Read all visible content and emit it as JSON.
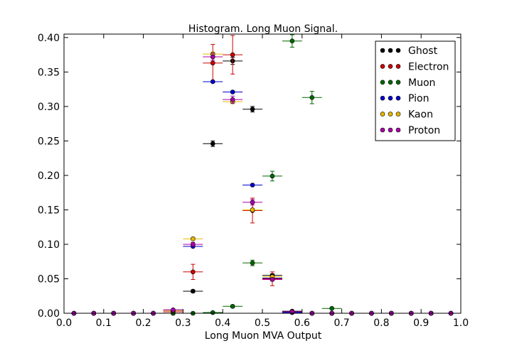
{
  "chart_data": {
    "type": "scatter",
    "title": "Histogram. Long Muon Signal.",
    "xlabel": "Long Muon MVA Output",
    "ylabel": "",
    "xlim": [
      0.0,
      1.0
    ],
    "ylim": [
      0.0,
      0.405
    ],
    "xticks": [
      "0.0",
      "0.1",
      "0.2",
      "0.3",
      "0.4",
      "0.5",
      "0.6",
      "0.7",
      "0.8",
      "0.9",
      "1.0"
    ],
    "yticks": [
      "0.00",
      "0.05",
      "0.10",
      "0.15",
      "0.20",
      "0.25",
      "0.30",
      "0.35",
      "0.40"
    ],
    "grid": false,
    "legend_position": "top-right",
    "bin_half_width": 0.025,
    "series": [
      {
        "name": "Ghost",
        "color": "#000000",
        "points": [
          {
            "x": 0.025,
            "y": 0.0,
            "err": 0.0
          },
          {
            "x": 0.075,
            "y": 0.0,
            "err": 0.0
          },
          {
            "x": 0.125,
            "y": 0.0,
            "err": 0.0
          },
          {
            "x": 0.175,
            "y": 0.0,
            "err": 0.0
          },
          {
            "x": 0.225,
            "y": 0.0,
            "err": 0.0
          },
          {
            "x": 0.275,
            "y": 0.0,
            "err": 0.0
          },
          {
            "x": 0.325,
            "y": 0.032,
            "err": 0.002
          },
          {
            "x": 0.375,
            "y": 0.246,
            "err": 0.004
          },
          {
            "x": 0.425,
            "y": 0.366,
            "err": 0.005
          },
          {
            "x": 0.475,
            "y": 0.296,
            "err": 0.004
          },
          {
            "x": 0.525,
            "y": 0.055,
            "err": 0.002
          },
          {
            "x": 0.575,
            "y": 0.003,
            "err": 0.001
          },
          {
            "x": 0.625,
            "y": 0.0,
            "err": 0.0
          },
          {
            "x": 0.675,
            "y": 0.0,
            "err": 0.0
          },
          {
            "x": 0.725,
            "y": 0.0,
            "err": 0.0
          },
          {
            "x": 0.775,
            "y": 0.0,
            "err": 0.0
          },
          {
            "x": 0.825,
            "y": 0.0,
            "err": 0.0
          },
          {
            "x": 0.875,
            "y": 0.0,
            "err": 0.0
          },
          {
            "x": 0.925,
            "y": 0.0,
            "err": 0.0
          },
          {
            "x": 0.975,
            "y": 0.0,
            "err": 0.0
          }
        ]
      },
      {
        "name": "Electron",
        "color": "#cc0000",
        "points": [
          {
            "x": 0.025,
            "y": 0.0,
            "err": 0.0
          },
          {
            "x": 0.075,
            "y": 0.0,
            "err": 0.0
          },
          {
            "x": 0.125,
            "y": 0.0,
            "err": 0.0
          },
          {
            "x": 0.175,
            "y": 0.0,
            "err": 0.0
          },
          {
            "x": 0.225,
            "y": 0.0,
            "err": 0.0
          },
          {
            "x": 0.275,
            "y": 0.002,
            "err": 0.002
          },
          {
            "x": 0.325,
            "y": 0.06,
            "err": 0.011
          },
          {
            "x": 0.375,
            "y": 0.363,
            "err": 0.027
          },
          {
            "x": 0.425,
            "y": 0.375,
            "err": 0.028
          },
          {
            "x": 0.475,
            "y": 0.149,
            "err": 0.018
          },
          {
            "x": 0.525,
            "y": 0.05,
            "err": 0.01
          },
          {
            "x": 0.575,
            "y": 0.002,
            "err": 0.002
          },
          {
            "x": 0.625,
            "y": 0.0,
            "err": 0.0
          },
          {
            "x": 0.675,
            "y": 0.0,
            "err": 0.0
          },
          {
            "x": 0.725,
            "y": 0.0,
            "err": 0.0
          },
          {
            "x": 0.775,
            "y": 0.0,
            "err": 0.0
          },
          {
            "x": 0.825,
            "y": 0.0,
            "err": 0.0
          },
          {
            "x": 0.875,
            "y": 0.0,
            "err": 0.0
          },
          {
            "x": 0.925,
            "y": 0.0,
            "err": 0.0
          },
          {
            "x": 0.975,
            "y": 0.0,
            "err": 0.0
          }
        ]
      },
      {
        "name": "Muon",
        "color": "#006600",
        "points": [
          {
            "x": 0.025,
            "y": 0.0,
            "err": 0.0
          },
          {
            "x": 0.075,
            "y": 0.0,
            "err": 0.0
          },
          {
            "x": 0.125,
            "y": 0.0,
            "err": 0.0
          },
          {
            "x": 0.175,
            "y": 0.0,
            "err": 0.0
          },
          {
            "x": 0.225,
            "y": 0.0,
            "err": 0.0
          },
          {
            "x": 0.275,
            "y": 0.0,
            "err": 0.0
          },
          {
            "x": 0.325,
            "y": 0.0,
            "err": 0.0
          },
          {
            "x": 0.375,
            "y": 0.001,
            "err": 0.001
          },
          {
            "x": 0.425,
            "y": 0.01,
            "err": 0.002
          },
          {
            "x": 0.475,
            "y": 0.073,
            "err": 0.004
          },
          {
            "x": 0.525,
            "y": 0.199,
            "err": 0.007
          },
          {
            "x": 0.575,
            "y": 0.395,
            "err": 0.009
          },
          {
            "x": 0.625,
            "y": 0.313,
            "err": 0.009
          },
          {
            "x": 0.675,
            "y": 0.007,
            "err": 0.001
          },
          {
            "x": 0.725,
            "y": 0.0,
            "err": 0.0
          },
          {
            "x": 0.775,
            "y": 0.0,
            "err": 0.0
          },
          {
            "x": 0.825,
            "y": 0.0,
            "err": 0.0
          },
          {
            "x": 0.875,
            "y": 0.0,
            "err": 0.0
          },
          {
            "x": 0.925,
            "y": 0.0,
            "err": 0.0
          },
          {
            "x": 0.975,
            "y": 0.0,
            "err": 0.0
          }
        ]
      },
      {
        "name": "Pion",
        "color": "#0000cc",
        "points": [
          {
            "x": 0.025,
            "y": 0.0,
            "err": 0.0
          },
          {
            "x": 0.075,
            "y": 0.0,
            "err": 0.0
          },
          {
            "x": 0.125,
            "y": 0.0,
            "err": 0.0
          },
          {
            "x": 0.175,
            "y": 0.0,
            "err": 0.0
          },
          {
            "x": 0.225,
            "y": 0.0,
            "err": 0.0
          },
          {
            "x": 0.275,
            "y": 0.004,
            "err": 0.0005
          },
          {
            "x": 0.325,
            "y": 0.097,
            "err": 0.001
          },
          {
            "x": 0.375,
            "y": 0.336,
            "err": 0.001
          },
          {
            "x": 0.425,
            "y": 0.321,
            "err": 0.001
          },
          {
            "x": 0.475,
            "y": 0.186,
            "err": 0.001
          },
          {
            "x": 0.525,
            "y": 0.051,
            "err": 0.001
          },
          {
            "x": 0.575,
            "y": 0.001,
            "err": 0.0002
          },
          {
            "x": 0.625,
            "y": 0.0,
            "err": 0.0
          },
          {
            "x": 0.675,
            "y": 0.0,
            "err": 0.0
          },
          {
            "x": 0.725,
            "y": 0.0,
            "err": 0.0
          },
          {
            "x": 0.775,
            "y": 0.0,
            "err": 0.0
          },
          {
            "x": 0.825,
            "y": 0.0,
            "err": 0.0
          },
          {
            "x": 0.875,
            "y": 0.0,
            "err": 0.0
          },
          {
            "x": 0.925,
            "y": 0.0,
            "err": 0.0
          },
          {
            "x": 0.975,
            "y": 0.0,
            "err": 0.0
          }
        ]
      },
      {
        "name": "Kaon",
        "color": "#e6b800",
        "points": [
          {
            "x": 0.025,
            "y": 0.0,
            "err": 0.0
          },
          {
            "x": 0.075,
            "y": 0.0,
            "err": 0.0
          },
          {
            "x": 0.125,
            "y": 0.0,
            "err": 0.0
          },
          {
            "x": 0.175,
            "y": 0.0,
            "err": 0.0
          },
          {
            "x": 0.225,
            "y": 0.0,
            "err": 0.0
          },
          {
            "x": 0.275,
            "y": 0.004,
            "err": 0.001
          },
          {
            "x": 0.325,
            "y": 0.108,
            "err": 0.002
          },
          {
            "x": 0.375,
            "y": 0.376,
            "err": 0.003
          },
          {
            "x": 0.425,
            "y": 0.307,
            "err": 0.003
          },
          {
            "x": 0.475,
            "y": 0.15,
            "err": 0.002
          },
          {
            "x": 0.525,
            "y": 0.053,
            "err": 0.001
          },
          {
            "x": 0.575,
            "y": 0.002,
            "err": 0.0005
          },
          {
            "x": 0.625,
            "y": 0.0,
            "err": 0.0
          },
          {
            "x": 0.675,
            "y": 0.0,
            "err": 0.0
          },
          {
            "x": 0.725,
            "y": 0.0,
            "err": 0.0
          },
          {
            "x": 0.775,
            "y": 0.0,
            "err": 0.0
          },
          {
            "x": 0.825,
            "y": 0.0,
            "err": 0.0
          },
          {
            "x": 0.875,
            "y": 0.0,
            "err": 0.0
          },
          {
            "x": 0.925,
            "y": 0.0,
            "err": 0.0
          },
          {
            "x": 0.975,
            "y": 0.0,
            "err": 0.0
          }
        ]
      },
      {
        "name": "Proton",
        "color": "#aa00aa",
        "points": [
          {
            "x": 0.025,
            "y": 0.0,
            "err": 0.0
          },
          {
            "x": 0.075,
            "y": 0.0,
            "err": 0.0
          },
          {
            "x": 0.125,
            "y": 0.0,
            "err": 0.0
          },
          {
            "x": 0.175,
            "y": 0.0,
            "err": 0.0
          },
          {
            "x": 0.225,
            "y": 0.0,
            "err": 0.0
          },
          {
            "x": 0.275,
            "y": 0.005,
            "err": 0.001
          },
          {
            "x": 0.325,
            "y": 0.1,
            "err": 0.003
          },
          {
            "x": 0.375,
            "y": 0.372,
            "err": 0.005
          },
          {
            "x": 0.425,
            "y": 0.31,
            "err": 0.005
          },
          {
            "x": 0.475,
            "y": 0.161,
            "err": 0.004
          },
          {
            "x": 0.525,
            "y": 0.049,
            "err": 0.002
          },
          {
            "x": 0.575,
            "y": 0.002,
            "err": 0.0005
          },
          {
            "x": 0.625,
            "y": 0.0,
            "err": 0.0
          },
          {
            "x": 0.675,
            "y": 0.0,
            "err": 0.0
          },
          {
            "x": 0.725,
            "y": 0.0,
            "err": 0.0
          },
          {
            "x": 0.775,
            "y": 0.0,
            "err": 0.0
          },
          {
            "x": 0.825,
            "y": 0.0,
            "err": 0.0
          },
          {
            "x": 0.875,
            "y": 0.0,
            "err": 0.0
          },
          {
            "x": 0.925,
            "y": 0.0,
            "err": 0.0
          },
          {
            "x": 0.975,
            "y": 0.0,
            "err": 0.0
          }
        ]
      }
    ]
  }
}
